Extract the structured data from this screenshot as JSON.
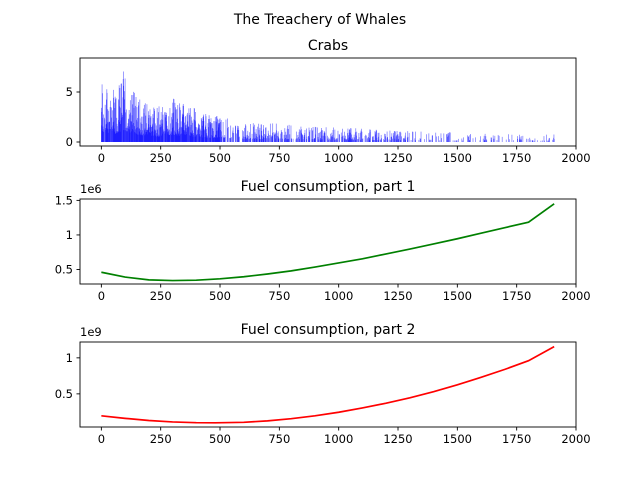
{
  "figure": {
    "suptitle": "The Treachery of Whales"
  },
  "chart_data": [
    {
      "type": "bar",
      "title": "Crabs",
      "xlabel": "",
      "ylabel": "",
      "xlim": [
        -90,
        2000
      ],
      "ylim": [
        -0.4,
        8.4
      ],
      "xticks": [
        0,
        250,
        500,
        750,
        1000,
        1250,
        1500,
        1750,
        2000
      ],
      "yticks": [
        0,
        5
      ],
      "x_range": [
        0,
        1908
      ],
      "description_values": "approximate histogram of crab counts per horizontal position",
      "color": "#0000ff",
      "peaks": [
        {
          "x": 0,
          "y": 7
        },
        {
          "x": 40,
          "y": 5
        },
        {
          "x": 60,
          "y": 5.5
        },
        {
          "x": 100,
          "y": 7.5
        },
        {
          "x": 150,
          "y": 4.5
        },
        {
          "x": 250,
          "y": 3.5
        },
        {
          "x": 300,
          "y": 4.5
        },
        {
          "x": 430,
          "y": 3
        },
        {
          "x": 600,
          "y": 2
        },
        {
          "x": 800,
          "y": 1.8
        },
        {
          "x": 1000,
          "y": 1.5
        },
        {
          "x": 1200,
          "y": 1.2
        },
        {
          "x": 1500,
          "y": 1.0
        },
        {
          "x": 1908,
          "y": 0.8
        }
      ]
    },
    {
      "type": "line",
      "title": "Fuel consumption, part 1",
      "offset_text": "1e6",
      "color": "#008000",
      "xlim": [
        -90,
        2000
      ],
      "ylim": [
        0.29,
        1.52
      ],
      "xticks": [
        0,
        250,
        500,
        750,
        1000,
        1250,
        1500,
        1750,
        2000
      ],
      "yticks": [
        0.5,
        1.0,
        1.5
      ],
      "x": [
        0,
        100,
        200,
        300,
        400,
        500,
        600,
        700,
        800,
        900,
        1000,
        1100,
        1200,
        1300,
        1400,
        1500,
        1600,
        1700,
        1800,
        1908
      ],
      "y": [
        0.46,
        0.39,
        0.35,
        0.34,
        0.345,
        0.365,
        0.395,
        0.435,
        0.48,
        0.535,
        0.595,
        0.655,
        0.725,
        0.795,
        0.87,
        0.945,
        1.025,
        1.105,
        1.185,
        1.45
      ]
    },
    {
      "type": "line",
      "title": "Fuel consumption, part 2",
      "offset_text": "1e9",
      "color": "#ff0000",
      "xlim": [
        -90,
        2000
      ],
      "ylim": [
        0.04,
        1.22
      ],
      "xticks": [
        0,
        250,
        500,
        750,
        1000,
        1250,
        1500,
        1750,
        2000
      ],
      "yticks": [
        0.5,
        1.0
      ],
      "x": [
        0,
        100,
        200,
        300,
        400,
        480,
        600,
        700,
        800,
        900,
        1000,
        1100,
        1200,
        1300,
        1400,
        1500,
        1600,
        1700,
        1800,
        1908
      ],
      "y": [
        0.195,
        0.16,
        0.13,
        0.11,
        0.1,
        0.098,
        0.105,
        0.125,
        0.155,
        0.195,
        0.245,
        0.305,
        0.37,
        0.445,
        0.53,
        0.625,
        0.73,
        0.84,
        0.96,
        1.155
      ]
    }
  ]
}
